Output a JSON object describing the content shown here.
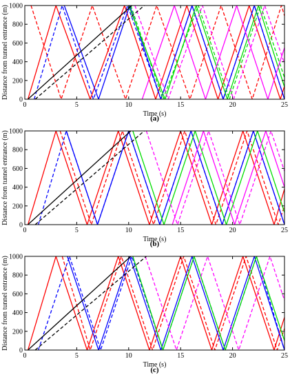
{
  "figure": {
    "panels": [
      {
        "caption": "(a)"
      },
      {
        "caption": "(b)"
      },
      {
        "caption": "(c)"
      }
    ]
  },
  "chart_data": [
    {
      "type": "line",
      "panel_label": "(a)",
      "xlabel": "Time (s)",
      "ylabel": "Distance from tunnel entrance (m)",
      "xlim": [
        0,
        25
      ],
      "ylim": [
        0,
        1000
      ],
      "xticks": [
        0,
        5,
        10,
        15,
        20,
        25
      ],
      "yticks": [
        0,
        200,
        400,
        600,
        800,
        1000
      ],
      "series": [
        {
          "color": "#ff0000",
          "style": "solid",
          "x": [
            0.3,
            3.0,
            6.3,
            9.6,
            12.6,
            15.6,
            18.6,
            21.6,
            24.6,
            25
          ],
          "y": [
            0,
            1000,
            0,
            1000,
            0,
            1000,
            0,
            1000,
            0,
            140
          ]
        },
        {
          "color": "#ff0000",
          "style": "dashed",
          "x": [
            0.6,
            3.5,
            6.5,
            9.7,
            12.7,
            15.9,
            18.9,
            21.9,
            24.7,
            25
          ],
          "y": [
            1000,
            0,
            1000,
            0,
            1000,
            0,
            1000,
            0,
            1000,
            890
          ]
        },
        {
          "color": "#0000ff",
          "style": "dashed",
          "x": [
            0.9,
            3.6,
            6.6,
            9.9,
            13.1,
            16.1,
            19.1,
            22.1,
            25
          ],
          "y": [
            0,
            1000,
            0,
            1000,
            0,
            1000,
            0,
            1000,
            0
          ]
        },
        {
          "color": "#0000ff",
          "style": "solid",
          "x": [
            3.8,
            7.1,
            10.1,
            13.1,
            16.1,
            19.1,
            22.1,
            25
          ],
          "y": [
            1000,
            0,
            1000,
            0,
            1000,
            0,
            1000,
            0
          ]
        },
        {
          "color": "#00dd00",
          "style": "solid",
          "x": [
            10.0,
            13.5,
            16.5,
            19.5,
            22.5,
            25
          ],
          "y": [
            1000,
            0,
            1000,
            0,
            1000,
            130
          ]
        },
        {
          "color": "#00dd00",
          "style": "dashed",
          "x": [
            10.2,
            13.3,
            16.7,
            19.7,
            22.7,
            25
          ],
          "y": [
            1000,
            0,
            1000,
            0,
            1000,
            230
          ]
        },
        {
          "color": "#ff00ff",
          "style": "solid",
          "x": [
            11.3,
            14.4,
            17.4,
            20.4,
            23.4,
            25
          ],
          "y": [
            0,
            1000,
            0,
            1000,
            0,
            550
          ]
        },
        {
          "color": "#ff00ff",
          "style": "dashed",
          "x": [
            10.6,
            13.8,
            17.1,
            20.1,
            23.1,
            25
          ],
          "y": [
            1000,
            0,
            1000,
            0,
            1000,
            380
          ]
        },
        {
          "color": "#000000",
          "style": "solid",
          "x": [
            0.3,
            10.3
          ],
          "y": [
            0,
            1000
          ]
        },
        {
          "color": "#000000",
          "style": "dashed",
          "x": [
            1.0,
            11.5
          ],
          "y": [
            0,
            1000
          ]
        }
      ]
    },
    {
      "type": "line",
      "panel_label": "(b)",
      "xlabel": "Time (s)",
      "ylabel": "Distance from tunnel entrance (m)",
      "xlim": [
        0,
        25
      ],
      "ylim": [
        0,
        1000
      ],
      "xticks": [
        0,
        5,
        10,
        15,
        20,
        25
      ],
      "yticks": [
        0,
        200,
        400,
        600,
        800,
        1000
      ],
      "series": [
        {
          "color": "#ff0000",
          "style": "solid",
          "x": [
            0.3,
            3.0,
            6.0,
            9.0,
            12.0,
            15.0,
            18.0,
            21.0,
            24.0,
            25
          ],
          "y": [
            0,
            1000,
            0,
            1000,
            0,
            1000,
            0,
            1000,
            0,
            380
          ]
        },
        {
          "color": "#ff0000",
          "style": "dashed",
          "x": [
            3.4,
            6.4,
            9.4,
            12.4,
            15.4,
            18.4,
            21.4,
            24.4,
            25
          ],
          "y": [
            1000,
            0,
            1000,
            0,
            1000,
            0,
            1000,
            0,
            200
          ]
        },
        {
          "color": "#0000ff",
          "style": "dashed",
          "x": [
            1.3,
            4.0,
            7.0,
            10.0,
            13.0,
            16.0,
            19.0,
            22.0,
            25
          ],
          "y": [
            0,
            1000,
            0,
            1000,
            0,
            1000,
            0,
            1000,
            0
          ]
        },
        {
          "color": "#0000ff",
          "style": "solid",
          "x": [
            4.0,
            7.0,
            10.0,
            13.0,
            16.0,
            19.0,
            22.0,
            25
          ],
          "y": [
            1000,
            0,
            1000,
            0,
            1000,
            0,
            1000,
            0
          ]
        },
        {
          "color": "#00dd00",
          "style": "solid",
          "x": [
            10.4,
            13.4,
            16.4,
            19.4,
            22.4,
            25
          ],
          "y": [
            1000,
            0,
            1000,
            0,
            1000,
            130
          ]
        },
        {
          "color": "#ff00ff",
          "style": "solid",
          "x": [
            14.2,
            17.2,
            20.2,
            23.2,
            25
          ],
          "y": [
            0,
            1000,
            0,
            1000,
            400
          ]
        },
        {
          "color": "#ff00ff",
          "style": "dashed",
          "x": [
            11.7,
            14.7,
            17.7,
            20.7,
            23.7,
            25
          ],
          "y": [
            1000,
            0,
            1000,
            0,
            1000,
            570
          ]
        },
        {
          "color": "#000000",
          "style": "solid",
          "x": [
            0.3,
            10.2
          ],
          "y": [
            0,
            1000
          ]
        },
        {
          "color": "#000000",
          "style": "dashed",
          "x": [
            1.0,
            11.5
          ],
          "y": [
            0,
            1000
          ]
        }
      ]
    },
    {
      "type": "line",
      "panel_label": "(c)",
      "xlabel": "Time (s)",
      "ylabel": "Distance from tunnel entrance (m)",
      "xlim": [
        0,
        25
      ],
      "ylim": [
        0,
        1000
      ],
      "xticks": [
        0,
        5,
        10,
        15,
        20,
        25
      ],
      "yticks": [
        0,
        200,
        400,
        600,
        800,
        1000
      ],
      "series": [
        {
          "color": "#ff0000",
          "style": "solid",
          "x": [
            0.3,
            3.0,
            6.0,
            9.0,
            12.0,
            15.0,
            18.0,
            21.0,
            24.0,
            25
          ],
          "y": [
            0,
            1000,
            0,
            1000,
            0,
            1000,
            0,
            1000,
            0,
            350
          ]
        },
        {
          "color": "#ff0000",
          "style": "dashed",
          "x": [
            3.6,
            6.3,
            9.3,
            12.3,
            15.3,
            18.3,
            21.3,
            24.3,
            25
          ],
          "y": [
            1000,
            0,
            1000,
            0,
            1000,
            0,
            1000,
            0,
            230
          ]
        },
        {
          "color": "#0000ff",
          "style": "dashed",
          "x": [
            1.3,
            4.3,
            7.3,
            10.3,
            13.3,
            16.3,
            19.3,
            22.3,
            25
          ],
          "y": [
            0,
            1000,
            0,
            1000,
            0,
            1000,
            0,
            1000,
            0
          ]
        },
        {
          "color": "#0000ff",
          "style": "solid",
          "x": [
            4.1,
            7.1,
            10.1,
            13.1,
            16.1,
            19.1,
            22.1,
            25
          ],
          "y": [
            1000,
            0,
            1000,
            0,
            1000,
            0,
            1000,
            0
          ]
        },
        {
          "color": "#00dd00",
          "style": "solid",
          "x": [
            10.4,
            13.3,
            16.3,
            19.3,
            22.3,
            25
          ],
          "y": [
            1000,
            0,
            1000,
            0,
            1000,
            100
          ]
        },
        {
          "color": "#ff00ff",
          "style": "dashed",
          "x": [
            11.6,
            14.6,
            17.6,
            20.6,
            23.6,
            25
          ],
          "y": [
            1000,
            0,
            1000,
            0,
            1000,
            530
          ]
        },
        {
          "color": "#000000",
          "style": "solid",
          "x": [
            0.3,
            10.2
          ],
          "y": [
            0,
            1000
          ]
        },
        {
          "color": "#000000",
          "style": "dashed",
          "x": [
            1.0,
            11.7
          ],
          "y": [
            0,
            1000
          ]
        }
      ]
    }
  ]
}
